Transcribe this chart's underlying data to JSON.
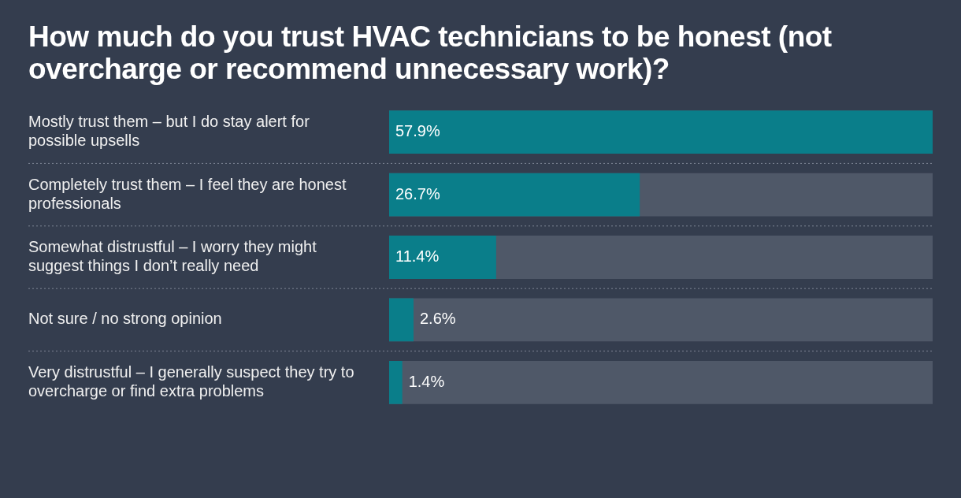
{
  "chart_data": {
    "type": "bar",
    "orientation": "horizontal",
    "title": "How much do you trust HVAC technicians to be honest (not overcharge or recommend unnecessary work)?",
    "categories": [
      "Mostly trust them – but I do stay alert for possible upsells",
      "Completely trust them – I feel they are honest professionals",
      "Somewhat distrustful – I worry they might suggest things I don’t really need",
      "Not sure / no strong opinion",
      "Very distrustful – I generally suspect they try to overcharge or find extra problems"
    ],
    "values": [
      57.9,
      26.7,
      11.4,
      2.6,
      1.4
    ],
    "value_labels": [
      "57.9%",
      "26.7%",
      "11.4%",
      "2.6%",
      "1.4%"
    ],
    "color": "#0a7e8a"
  }
}
